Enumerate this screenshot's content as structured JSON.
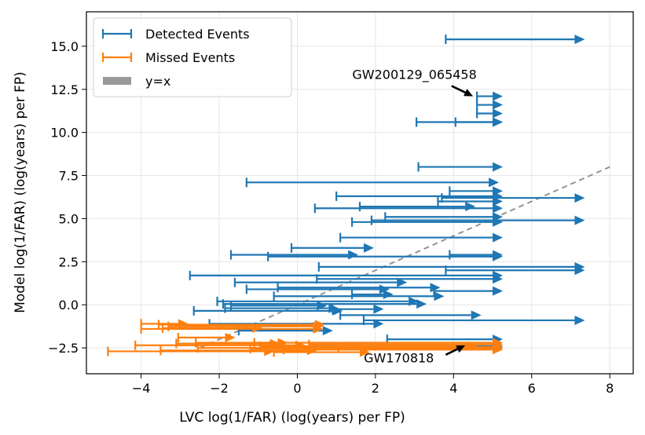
{
  "chart_data": {
    "type": "scatter",
    "xlabel": "LVC log(1/FAR) (log(years) per FP)",
    "ylabel": "Model log(1/FAR) (log(years) per FP)",
    "xlim": [
      -5.4,
      8.6
    ],
    "ylim": [
      -4.0,
      17.0
    ],
    "xticks": [
      -4,
      -2,
      0,
      2,
      4,
      6,
      8
    ],
    "yticks": [
      -2.5,
      0.0,
      2.5,
      5.0,
      7.5,
      10.0,
      12.5,
      15.0
    ],
    "grid": true,
    "legend_position": "upper-left",
    "legend": [
      {
        "label": "Detected Events",
        "color": "#1f77b4",
        "kind": "errorbar"
      },
      {
        "label": "Missed Events",
        "color": "#ff7f0e",
        "kind": "errorbar"
      },
      {
        "label": "y=x",
        "color": "#999999",
        "kind": "patch"
      }
    ],
    "reference_line": {
      "label": "y=x",
      "x": [
        -2.5,
        8.0
      ],
      "y": [
        -2.5,
        8.0
      ],
      "color": "#888888",
      "style": "dashed"
    },
    "series": [
      {
        "name": "Detected Events",
        "color": "#1f77b4",
        "ranges": [
          {
            "y": 15.4,
            "x0": 3.8,
            "x1": 7.1
          },
          {
            "y": 12.1,
            "x0": 4.6,
            "x1": 5.0
          },
          {
            "y": 11.6,
            "x0": 4.6,
            "x1": 5.0
          },
          {
            "y": 11.1,
            "x0": 4.6,
            "x1": 5.0
          },
          {
            "y": 10.6,
            "x0": 3.05,
            "x1": 5.0
          },
          {
            "y": 10.6,
            "x0": 4.05,
            "x1": 5.0
          },
          {
            "y": 8.0,
            "x0": 3.1,
            "x1": 5.0
          },
          {
            "y": 7.1,
            "x0": -1.3,
            "x1": 4.9
          },
          {
            "y": 6.6,
            "x0": 3.9,
            "x1": 5.0
          },
          {
            "y": 6.3,
            "x0": 1.0,
            "x1": 5.0
          },
          {
            "y": 6.2,
            "x0": 3.7,
            "x1": 7.1
          },
          {
            "y": 6.0,
            "x0": 3.6,
            "x1": 5.0
          },
          {
            "y": 5.7,
            "x0": 1.6,
            "x1": 4.3
          },
          {
            "y": 5.6,
            "x0": 0.45,
            "x1": 5.0
          },
          {
            "y": 5.1,
            "x0": 2.25,
            "x1": 5.0
          },
          {
            "y": 4.9,
            "x0": 1.9,
            "x1": 7.1
          },
          {
            "y": 4.8,
            "x0": 1.4,
            "x1": 5.0
          },
          {
            "y": 3.9,
            "x0": 1.1,
            "x1": 5.0
          },
          {
            "y": 3.3,
            "x0": -0.15,
            "x1": 1.7
          },
          {
            "y": 2.9,
            "x0": -1.7,
            "x1": 1.3
          },
          {
            "y": 2.9,
            "x0": 3.9,
            "x1": 5.0
          },
          {
            "y": 2.8,
            "x0": -0.75,
            "x1": 5.0
          },
          {
            "y": 2.2,
            "x0": 0.55,
            "x1": 7.1
          },
          {
            "y": 2.0,
            "x0": 3.8,
            "x1": 7.1
          },
          {
            "y": 1.7,
            "x0": -2.75,
            "x1": 5.0
          },
          {
            "y": 1.5,
            "x0": 0.5,
            "x1": 5.0
          },
          {
            "y": 1.3,
            "x0": -1.6,
            "x1": 2.55
          },
          {
            "y": 1.0,
            "x0": -0.5,
            "x1": 3.4
          },
          {
            "y": 0.9,
            "x0": -1.3,
            "x1": 2.1
          },
          {
            "y": 0.8,
            "x0": 3.5,
            "x1": 5.0
          },
          {
            "y": 0.6,
            "x0": 1.4,
            "x1": 2.2
          },
          {
            "y": 0.5,
            "x0": -0.6,
            "x1": 3.5
          },
          {
            "y": 0.2,
            "x0": -2.05,
            "x1": 2.85
          },
          {
            "y": 0.05,
            "x0": -1.9,
            "x1": 3.05
          },
          {
            "y": -0.05,
            "x0": -1.7,
            "x1": 0.5
          },
          {
            "y": -0.2,
            "x0": -1.85,
            "x1": 0.8
          },
          {
            "y": -0.25,
            "x0": 0.9,
            "x1": 1.95
          },
          {
            "y": -0.35,
            "x0": -2.65,
            "x1": 0.9
          },
          {
            "y": -0.6,
            "x0": 1.1,
            "x1": 4.45
          },
          {
            "y": -0.9,
            "x0": 1.7,
            "x1": 7.1
          },
          {
            "y": -1.1,
            "x0": -2.25,
            "x1": 1.95
          },
          {
            "y": -1.5,
            "x0": -1.5,
            "x1": 0.65
          },
          {
            "y": -2.0,
            "x0": 2.3,
            "x1": 5.0
          },
          {
            "y": -2.4,
            "x0": -0.7,
            "x1": 5.0
          }
        ]
      },
      {
        "name": "Missed Events",
        "color": "#ff7f0e",
        "ranges": [
          {
            "y": -1.1,
            "x0": -4.0,
            "x1": -3.05
          },
          {
            "y": -1.15,
            "x0": -3.55,
            "x1": 0.45
          },
          {
            "y": -1.25,
            "x0": -3.3,
            "x1": 0.4
          },
          {
            "y": -1.35,
            "x0": -3.45,
            "x1": -1.15
          },
          {
            "y": -1.4,
            "x0": -4.0,
            "x1": 0.4
          },
          {
            "y": -1.9,
            "x0": -3.05,
            "x1": -1.85
          },
          {
            "y": -2.2,
            "x0": -2.6,
            "x1": -0.5
          },
          {
            "y": -2.2,
            "x0": -1.1,
            "x1": 5.0
          },
          {
            "y": -2.25,
            "x0": -3.1,
            "x1": -0.7
          },
          {
            "y": -2.3,
            "x0": 0.3,
            "x1": 5.0
          },
          {
            "y": -2.35,
            "x0": -4.15,
            "x1": -0.05
          },
          {
            "y": -2.4,
            "x0": -0.95,
            "x1": 4.35
          },
          {
            "y": -2.45,
            "x0": 1.05,
            "x1": 5.0
          },
          {
            "y": -2.5,
            "x0": -2.55,
            "x1": 5.0
          },
          {
            "y": -2.55,
            "x0": -1.2,
            "x1": 5.0
          },
          {
            "y": -2.6,
            "x0": -0.35,
            "x1": 5.0
          },
          {
            "y": -2.65,
            "x0": -3.5,
            "x1": 0.25
          },
          {
            "y": -2.7,
            "x0": -4.85,
            "x1": -0.85
          },
          {
            "y": -2.75,
            "x0": -0.6,
            "x1": 1.6
          }
        ]
      }
    ],
    "annotations": [
      {
        "text": "GW200129_065458",
        "text_x": 3.0,
        "text_y": 13.1,
        "arrow_from": [
          3.95,
          12.7
        ],
        "arrow_to": [
          4.5,
          12.1
        ]
      },
      {
        "text": "GW170818",
        "text_x": 2.6,
        "text_y": -3.35,
        "arrow_from": [
          3.8,
          -2.9
        ],
        "arrow_to": [
          4.3,
          -2.35
        ]
      }
    ]
  }
}
